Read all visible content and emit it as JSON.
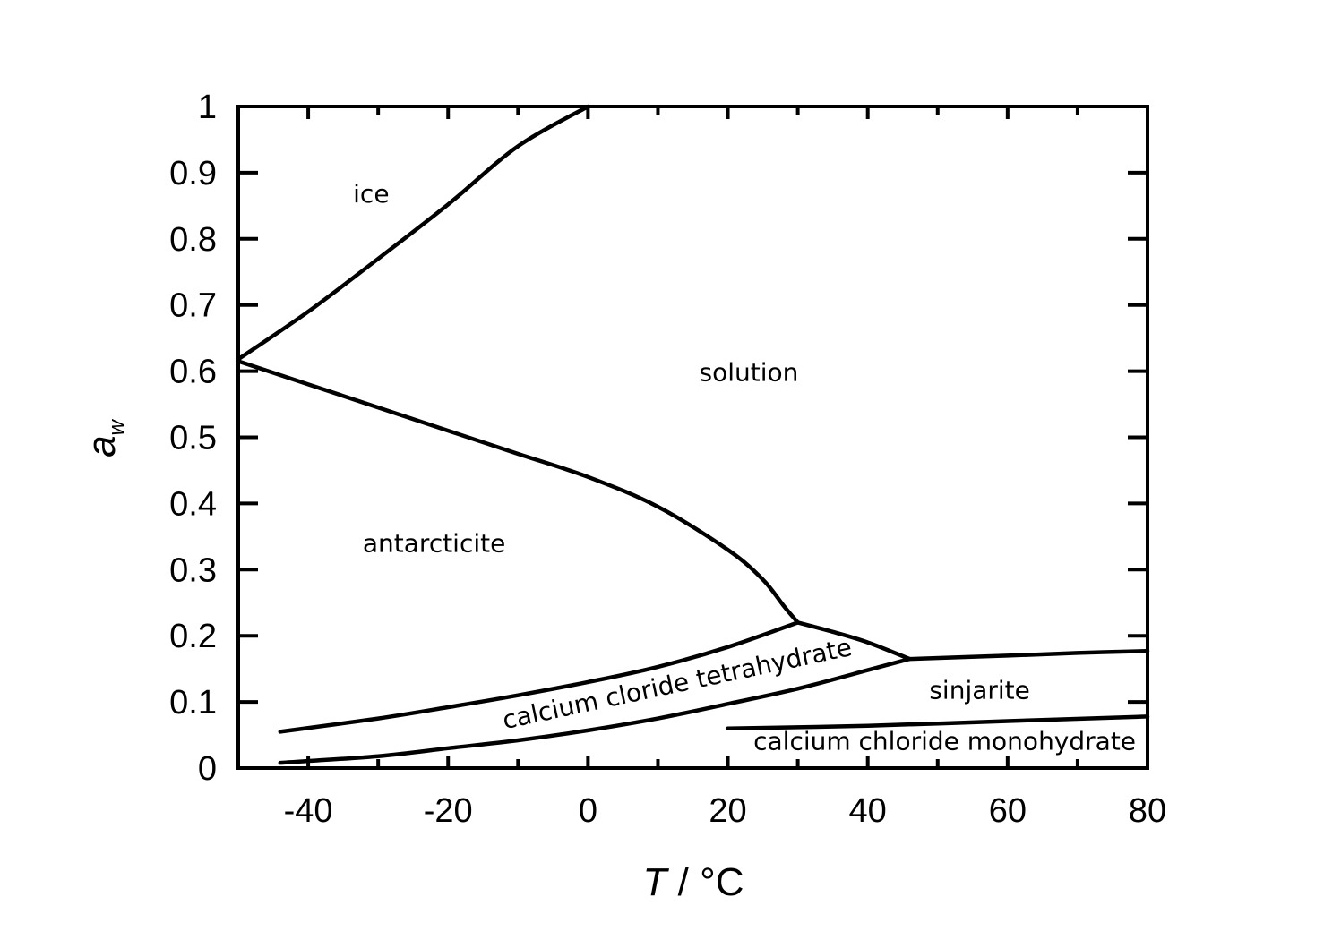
{
  "chart_data": {
    "type": "line",
    "xlabel_var": "T",
    "xlabel_unit": " / °C",
    "ylabel_main": "a",
    "ylabel_sub": "w",
    "xlim": [
      -50,
      80
    ],
    "ylim": [
      0,
      1
    ],
    "xticks": [
      -40,
      -20,
      0,
      20,
      40,
      60,
      80
    ],
    "yticks": [
      0,
      0.1,
      0.2,
      0.3,
      0.4,
      0.5,
      0.6,
      0.7,
      0.8,
      0.9,
      1
    ],
    "xtick_labels": [
      "-40",
      "-20",
      "0",
      "20",
      "40",
      "60",
      "80"
    ],
    "ytick_labels": [
      "0",
      "0.1",
      "0.2",
      "0.3",
      "0.4",
      "0.5",
      "0.6",
      "0.7",
      "0.8",
      "0.9",
      "1"
    ],
    "grid": false,
    "series": [
      {
        "x": [
          -50,
          -40,
          -30,
          -20,
          -10,
          0
        ],
        "y": [
          0.618,
          0.69,
          0.77,
          0.852,
          0.94,
          1.0
        ]
      },
      {
        "x": [
          -50,
          -40,
          -30,
          -20,
          -10,
          0,
          10,
          20,
          25,
          28,
          30
        ],
        "y": [
          0.615,
          0.58,
          0.545,
          0.51,
          0.475,
          0.44,
          0.395,
          0.33,
          0.285,
          0.245,
          0.22
        ]
      },
      {
        "x": [
          -44,
          -30,
          -20,
          -10,
          0,
          10,
          20,
          30
        ],
        "y": [
          0.055,
          0.075,
          0.092,
          0.11,
          0.13,
          0.153,
          0.183,
          0.22
        ]
      },
      {
        "x": [
          30,
          35,
          40,
          46
        ],
        "y": [
          0.22,
          0.206,
          0.19,
          0.165
        ]
      },
      {
        "x": [
          -44,
          -30,
          -20,
          -10,
          0,
          10,
          20,
          30,
          40,
          46
        ],
        "y": [
          0.008,
          0.018,
          0.03,
          0.042,
          0.057,
          0.075,
          0.097,
          0.12,
          0.148,
          0.165
        ]
      },
      {
        "x": [
          46,
          60,
          70,
          80
        ],
        "y": [
          0.165,
          0.17,
          0.174,
          0.177
        ]
      },
      {
        "x": [
          20,
          40,
          60,
          80
        ],
        "y": [
          0.06,
          0.064,
          0.071,
          0.078
        ]
      }
    ],
    "annotations": [
      {
        "text": "ice",
        "x": -31,
        "y": 0.855,
        "rotate": 0
      },
      {
        "text": "solution",
        "x": 23,
        "y": 0.585,
        "rotate": 0
      },
      {
        "text": "antarcticite",
        "x": -22,
        "y": 0.327,
        "rotate": 0
      },
      {
        "text": "calcium cloride tetrahydrate",
        "x": 13,
        "y": 0.115,
        "rotate": -12
      },
      {
        "text": "sinjarite",
        "x": 56,
        "y": 0.105,
        "rotate": 0
      },
      {
        "text": "calcium chloride monohydrate",
        "x": 51,
        "y": 0.028,
        "rotate": 0
      }
    ]
  }
}
